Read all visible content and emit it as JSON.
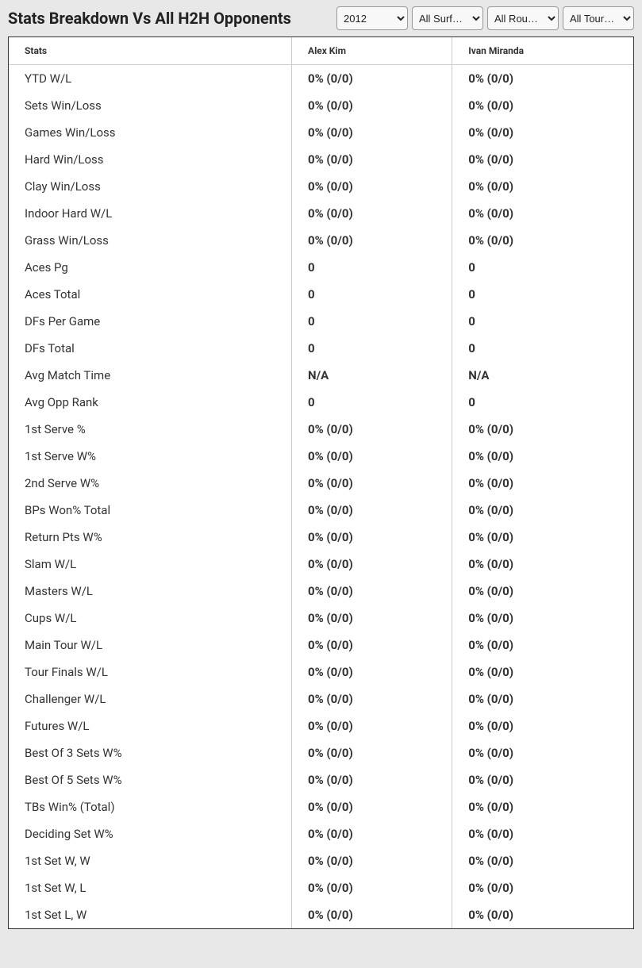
{
  "header": {
    "title": "Stats Breakdown Vs All H2H Opponents",
    "filters": {
      "year": "2012",
      "surface": "All Surf…",
      "round": "All Rou…",
      "tour": "All Tour…"
    }
  },
  "table": {
    "columns": [
      "Stats",
      "Alex Kim",
      "Ivan Miranda"
    ],
    "rows": [
      {
        "stat": "YTD W/L",
        "p1": "0% (0/0)",
        "p2": "0% (0/0)"
      },
      {
        "stat": "Sets Win/Loss",
        "p1": "0% (0/0)",
        "p2": "0% (0/0)"
      },
      {
        "stat": "Games Win/Loss",
        "p1": "0% (0/0)",
        "p2": "0% (0/0)"
      },
      {
        "stat": "Hard Win/Loss",
        "p1": "0% (0/0)",
        "p2": "0% (0/0)"
      },
      {
        "stat": "Clay Win/Loss",
        "p1": "0% (0/0)",
        "p2": "0% (0/0)"
      },
      {
        "stat": "Indoor Hard W/L",
        "p1": "0% (0/0)",
        "p2": "0% (0/0)"
      },
      {
        "stat": "Grass Win/Loss",
        "p1": "0% (0/0)",
        "p2": "0% (0/0)"
      },
      {
        "stat": "Aces Pg",
        "p1": "0",
        "p2": "0"
      },
      {
        "stat": "Aces Total",
        "p1": "0",
        "p2": "0"
      },
      {
        "stat": "DFs Per Game",
        "p1": "0",
        "p2": "0"
      },
      {
        "stat": "DFs Total",
        "p1": "0",
        "p2": "0"
      },
      {
        "stat": "Avg Match Time",
        "p1": "N/A",
        "p2": "N/A"
      },
      {
        "stat": "Avg Opp Rank",
        "p1": "0",
        "p2": "0"
      },
      {
        "stat": "1st Serve %",
        "p1": "0% (0/0)",
        "p2": "0% (0/0)"
      },
      {
        "stat": "1st Serve W%",
        "p1": "0% (0/0)",
        "p2": "0% (0/0)"
      },
      {
        "stat": "2nd Serve W%",
        "p1": "0% (0/0)",
        "p2": "0% (0/0)"
      },
      {
        "stat": "BPs Won% Total",
        "p1": "0% (0/0)",
        "p2": "0% (0/0)"
      },
      {
        "stat": "Return Pts W%",
        "p1": "0% (0/0)",
        "p2": "0% (0/0)"
      },
      {
        "stat": "Slam W/L",
        "p1": "0% (0/0)",
        "p2": "0% (0/0)"
      },
      {
        "stat": "Masters W/L",
        "p1": "0% (0/0)",
        "p2": "0% (0/0)"
      },
      {
        "stat": "Cups W/L",
        "p1": "0% (0/0)",
        "p2": "0% (0/0)"
      },
      {
        "stat": "Main Tour W/L",
        "p1": "0% (0/0)",
        "p2": "0% (0/0)"
      },
      {
        "stat": "Tour Finals W/L",
        "p1": "0% (0/0)",
        "p2": "0% (0/0)"
      },
      {
        "stat": "Challenger W/L",
        "p1": "0% (0/0)",
        "p2": "0% (0/0)"
      },
      {
        "stat": "Futures W/L",
        "p1": "0% (0/0)",
        "p2": "0% (0/0)"
      },
      {
        "stat": "Best Of 3 Sets W%",
        "p1": "0% (0/0)",
        "p2": "0% (0/0)"
      },
      {
        "stat": "Best Of 5 Sets W%",
        "p1": "0% (0/0)",
        "p2": "0% (0/0)"
      },
      {
        "stat": "TBs Win% (Total)",
        "p1": "0% (0/0)",
        "p2": "0% (0/0)"
      },
      {
        "stat": "Deciding Set W%",
        "p1": "0% (0/0)",
        "p2": "0% (0/0)"
      },
      {
        "stat": "1st Set W, W",
        "p1": "0% (0/0)",
        "p2": "0% (0/0)"
      },
      {
        "stat": "1st Set W, L",
        "p1": "0% (0/0)",
        "p2": "0% (0/0)"
      },
      {
        "stat": "1st Set L, W",
        "p1": "0% (0/0)",
        "p2": "0% (0/0)"
      }
    ]
  },
  "colors": {
    "background": "#e8e8e8",
    "table_bg": "#ffffff",
    "border": "#cccccc",
    "outer_border": "#333333",
    "text": "#333333"
  }
}
